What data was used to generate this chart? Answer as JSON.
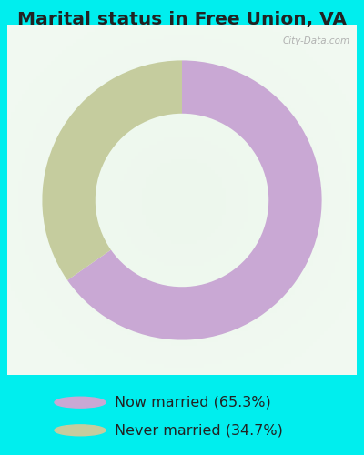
{
  "title": "Marital status in Free Union, VA",
  "slices": [
    65.3,
    34.7
  ],
  "colors": [
    "#c9a8d4",
    "#c5cc9e"
  ],
  "legend_labels": [
    "Now married (65.3%)",
    "Never married (34.7%)"
  ],
  "legend_colors": [
    "#c9a8d4",
    "#c5cc9e"
  ],
  "bg_cyan": "#00eeee",
  "chart_bg": "#e8f5ee",
  "title_fontsize": 14.5,
  "legend_fontsize": 11.5,
  "watermark": "City-Data.com",
  "title_color": "#222222"
}
